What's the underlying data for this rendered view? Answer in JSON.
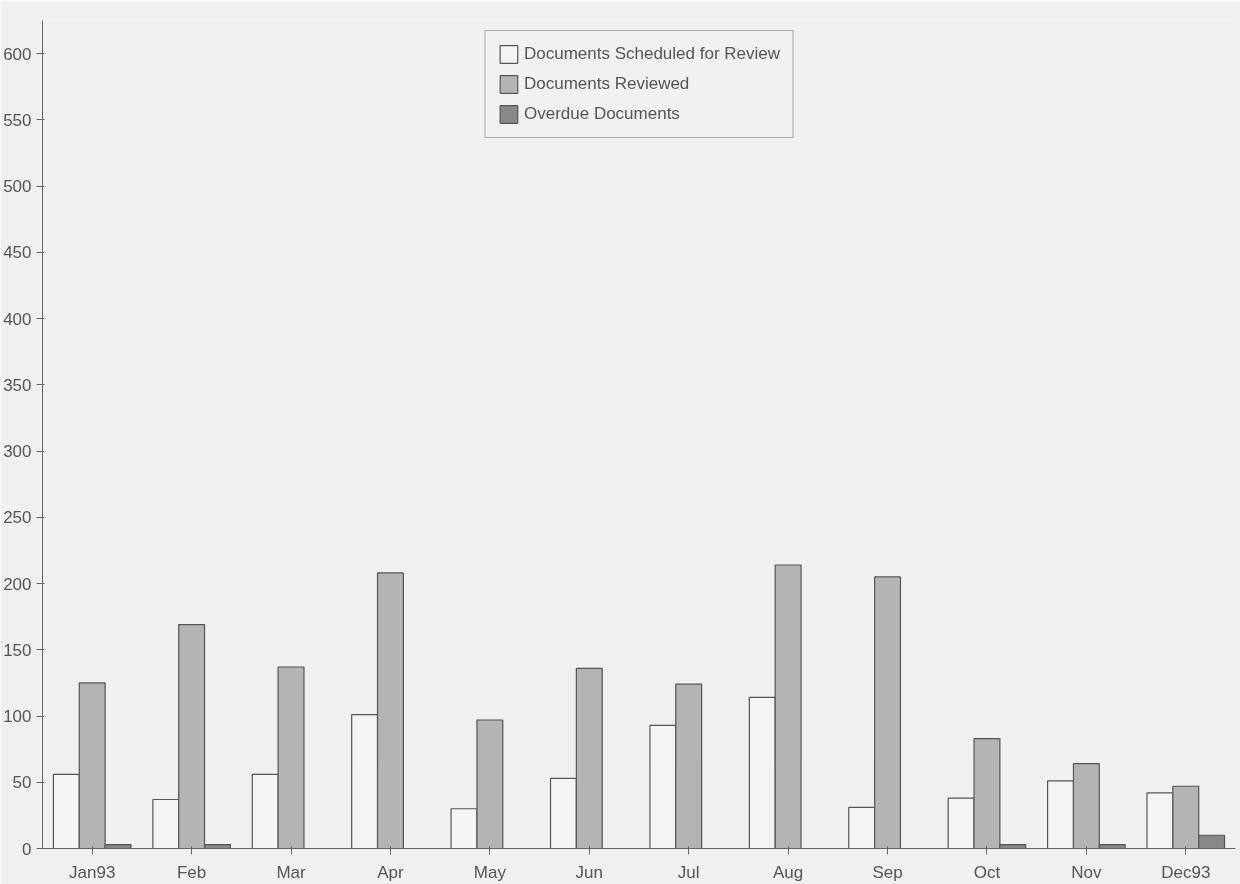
{
  "chart_data": {
    "type": "bar",
    "categories": [
      "Jan93",
      "Feb",
      "Mar",
      "Apr",
      "May",
      "Jun",
      "Jul",
      "Aug",
      "Sep",
      "Oct",
      "Nov",
      "Dec93"
    ],
    "series": [
      {
        "name": "Documents Scheduled for Review",
        "color": "#f4f4f4",
        "values": [
          56,
          37,
          56,
          101,
          30,
          53,
          93,
          114,
          31,
          38,
          51,
          42
        ]
      },
      {
        "name": "Documents Reviewed",
        "color": "#b4b4b4",
        "values": [
          125,
          169,
          137,
          208,
          97,
          136,
          124,
          214,
          205,
          83,
          64,
          47
        ]
      },
      {
        "name": "Overdue Documents",
        "color": "#888888",
        "values": [
          3,
          3,
          0,
          0,
          0,
          0,
          0,
          0,
          0,
          3,
          3,
          10
        ]
      }
    ],
    "ylim": [
      0,
      625
    ],
    "yticks": [
      0,
      50,
      100,
      150,
      200,
      250,
      300,
      350,
      400,
      450,
      500,
      550,
      600
    ],
    "grid": false,
    "legend": "top"
  }
}
